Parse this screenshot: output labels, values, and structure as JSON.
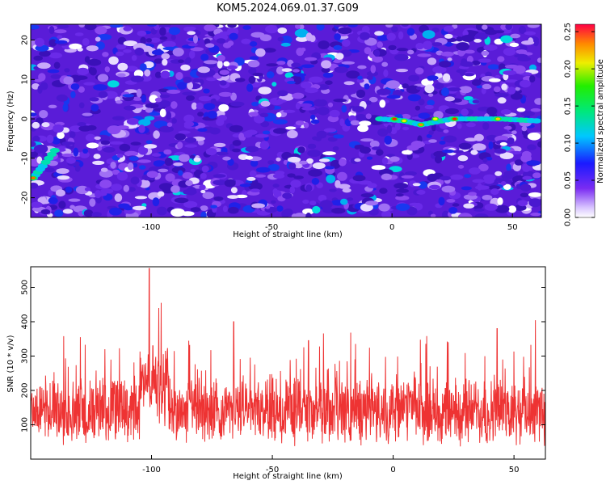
{
  "title": "KOM5.2024.069.01.37.G09",
  "chart_data": [
    {
      "type": "heatmap",
      "xlabel": "Height of straight line (km)",
      "ylabel": "Frequency (Hz)",
      "xlim": [
        -150,
        62
      ],
      "ylim": [
        -25,
        24
      ],
      "x_ticks": [
        -100,
        -50,
        0,
        50
      ],
      "y_ticks": [
        -20,
        -10,
        0,
        10,
        20
      ],
      "colorbar": {
        "label": "Normalized spectral amplitude",
        "range": [
          0,
          0.26
        ],
        "ticks": [
          "0.00",
          "0.05",
          "0.10",
          "0.15",
          "0.20",
          "0.25"
        ]
      },
      "ridge": [
        {
          "x": -149,
          "y": -15
        },
        {
          "x": -145,
          "y": -12
        },
        {
          "x": -140,
          "y": -8
        },
        {
          "x": -5,
          "y": 0
        },
        {
          "x": 5,
          "y": -0.5
        },
        {
          "x": 12,
          "y": -1.5
        },
        {
          "x": 25,
          "y": 0
        },
        {
          "x": 45,
          "y": 0
        },
        {
          "x": 60,
          "y": -0.5
        }
      ]
    },
    {
      "type": "line",
      "xlabel": "Height of straight line (km)",
      "ylabel": "SNR (10 * v/v)",
      "xlim": [
        -150,
        63
      ],
      "ylim": [
        0,
        560
      ],
      "x_ticks": [
        -100,
        -50,
        0,
        50
      ],
      "y_ticks": [
        100,
        200,
        300,
        400,
        500
      ],
      "color": "#ee3333",
      "peaks": [
        {
          "x": -101,
          "y": 555
        },
        {
          "x": -99.5,
          "y": 330
        },
        {
          "x": -97,
          "y": 440
        },
        {
          "x": -96,
          "y": 455
        },
        {
          "x": -66,
          "y": 400
        },
        {
          "x": -35,
          "y": 345
        },
        {
          "x": 43,
          "y": 380
        }
      ],
      "baseline_mean": 140
    }
  ]
}
